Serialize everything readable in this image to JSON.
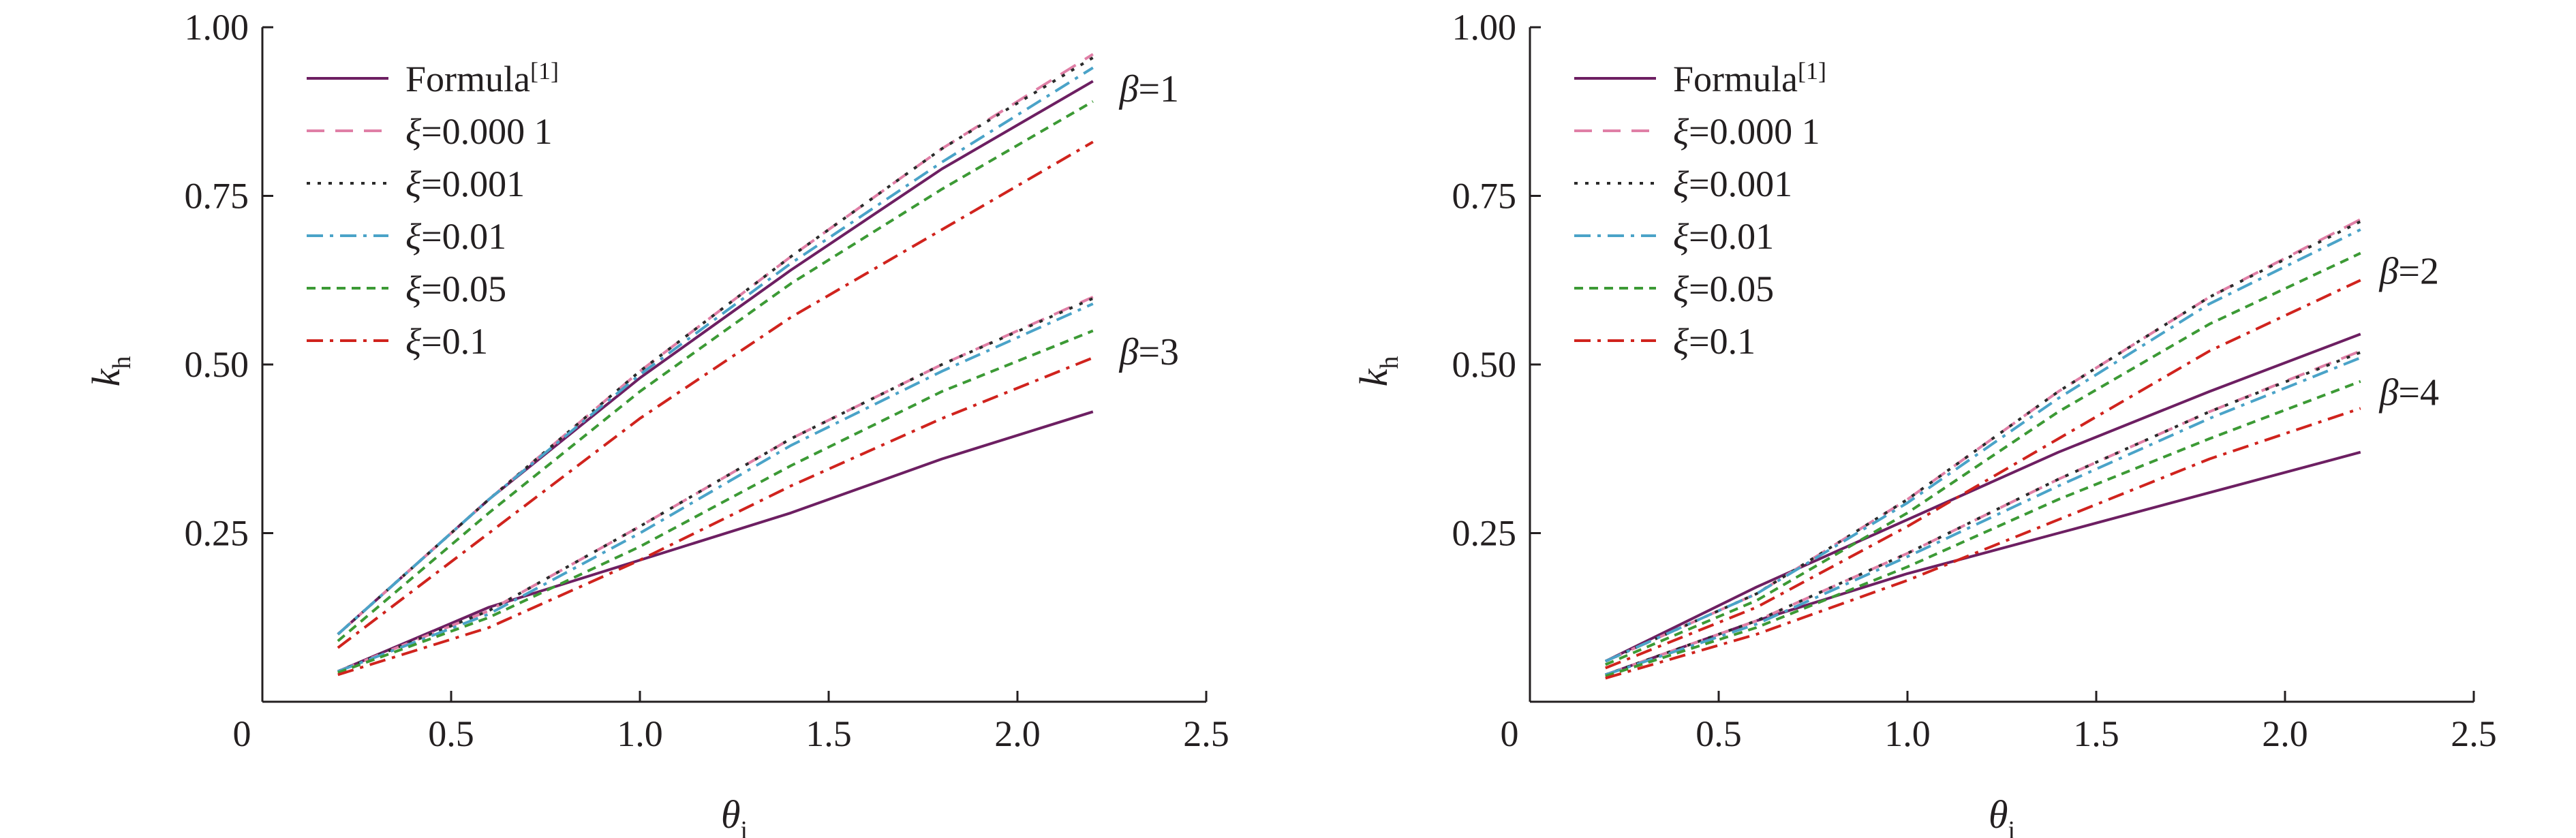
{
  "chart_data": [
    {
      "type": "line",
      "xlabel": "θ",
      "xlabel_sub": "i",
      "ylabel": "k",
      "ylabel_sub": "h",
      "xlim": [
        0,
        2.5
      ],
      "ylim": [
        0,
        1.0
      ],
      "xticks": [
        "0",
        "0.5",
        "1.0",
        "1.5",
        "2.0",
        "2.5"
      ],
      "yticks": [
        "0.25",
        "0.50",
        "0.75",
        "1.00"
      ],
      "ytick_values": [
        0.25,
        0.5,
        0.75,
        1.0
      ],
      "xtick_values": [
        0,
        0.5,
        1.0,
        1.5,
        2.0,
        2.5
      ],
      "legend_position": "top-left",
      "legend": [
        {
          "sym": "",
          "text": "Formula",
          "sup": "[1]",
          "color": "#6d1f62",
          "dash": "solid"
        },
        {
          "sym": "ξ",
          "text": "=0.000 1",
          "sup": "",
          "color": "#e07fa6",
          "dash": "dashed"
        },
        {
          "sym": "ξ",
          "text": "=0.001",
          "sup": "",
          "color": "#2b2b2b",
          "dash": "dotted"
        },
        {
          "sym": "ξ",
          "text": "=0.01",
          "sup": "",
          "color": "#4aa3c8",
          "dash": "dashdot"
        },
        {
          "sym": "ξ",
          "text": "=0.05",
          "sup": "",
          "color": "#3c9a35",
          "dash": "shortdash"
        },
        {
          "sym": "ξ",
          "text": "=0.1",
          "sup": "",
          "color": "#d0231d",
          "dash": "dashdot"
        }
      ],
      "annotations": [
        {
          "sym": "β",
          "text": "=1",
          "x": 2.27,
          "y": 0.91
        },
        {
          "sym": "β",
          "text": "=3",
          "x": 2.27,
          "y": 0.52
        }
      ],
      "series": [
        {
          "group": "β=1",
          "style": 0,
          "x": [
            0.2,
            0.6,
            1.0,
            1.4,
            1.8,
            2.2
          ],
          "y": [
            0.1,
            0.3,
            0.48,
            0.64,
            0.79,
            0.92
          ]
        },
        {
          "group": "β=1",
          "style": 1,
          "x": [
            0.2,
            0.6,
            1.0,
            1.4,
            1.8,
            2.2
          ],
          "y": [
            0.1,
            0.3,
            0.49,
            0.66,
            0.82,
            0.96
          ]
        },
        {
          "group": "β=1",
          "style": 2,
          "x": [
            0.2,
            0.6,
            1.0,
            1.4,
            1.8,
            2.2
          ],
          "y": [
            0.1,
            0.3,
            0.49,
            0.66,
            0.82,
            0.955
          ]
        },
        {
          "group": "β=1",
          "style": 3,
          "x": [
            0.2,
            0.6,
            1.0,
            1.4,
            1.8,
            2.2
          ],
          "y": [
            0.1,
            0.3,
            0.485,
            0.65,
            0.8,
            0.94
          ]
        },
        {
          "group": "β=1",
          "style": 4,
          "x": [
            0.2,
            0.6,
            1.0,
            1.4,
            1.8,
            2.2
          ],
          "y": [
            0.09,
            0.28,
            0.46,
            0.62,
            0.76,
            0.89
          ]
        },
        {
          "group": "β=1",
          "style": 5,
          "x": [
            0.2,
            0.6,
            1.0,
            1.4,
            1.8,
            2.2
          ],
          "y": [
            0.08,
            0.25,
            0.42,
            0.57,
            0.7,
            0.83
          ]
        },
        {
          "group": "β=3",
          "style": 0,
          "x": [
            0.2,
            0.6,
            1.0,
            1.4,
            1.8,
            2.2
          ],
          "y": [
            0.045,
            0.14,
            0.21,
            0.28,
            0.36,
            0.43
          ]
        },
        {
          "group": "β=3",
          "style": 1,
          "x": [
            0.2,
            0.6,
            1.0,
            1.4,
            1.8,
            2.2
          ],
          "y": [
            0.045,
            0.135,
            0.26,
            0.39,
            0.5,
            0.6
          ]
        },
        {
          "group": "β=3",
          "style": 2,
          "x": [
            0.2,
            0.6,
            1.0,
            1.4,
            1.8,
            2.2
          ],
          "y": [
            0.045,
            0.135,
            0.26,
            0.39,
            0.5,
            0.598
          ]
        },
        {
          "group": "β=3",
          "style": 3,
          "x": [
            0.2,
            0.6,
            1.0,
            1.4,
            1.8,
            2.2
          ],
          "y": [
            0.045,
            0.13,
            0.25,
            0.38,
            0.49,
            0.59
          ]
        },
        {
          "group": "β=3",
          "style": 4,
          "x": [
            0.2,
            0.6,
            1.0,
            1.4,
            1.8,
            2.2
          ],
          "y": [
            0.043,
            0.125,
            0.23,
            0.35,
            0.46,
            0.55
          ]
        },
        {
          "group": "β=3",
          "style": 5,
          "x": [
            0.2,
            0.6,
            1.0,
            1.4,
            1.8,
            2.2
          ],
          "y": [
            0.04,
            0.11,
            0.21,
            0.32,
            0.42,
            0.51
          ]
        }
      ]
    },
    {
      "type": "line",
      "xlabel": "θ",
      "xlabel_sub": "i",
      "ylabel": "k",
      "ylabel_sub": "h",
      "xlim": [
        0,
        2.5
      ],
      "ylim": [
        0,
        1.0
      ],
      "xticks": [
        "0",
        "0.5",
        "1.0",
        "1.5",
        "2.0",
        "2.5"
      ],
      "yticks": [
        "0.25",
        "0.50",
        "0.75",
        "1.00"
      ],
      "ytick_values": [
        0.25,
        0.5,
        0.75,
        1.0
      ],
      "xtick_values": [
        0,
        0.5,
        1.0,
        1.5,
        2.0,
        2.5
      ],
      "legend_position": "top-left",
      "legend": [
        {
          "sym": "",
          "text": "Formula",
          "sup": "[1]",
          "color": "#6d1f62",
          "dash": "solid"
        },
        {
          "sym": "ξ",
          "text": "=0.000 1",
          "sup": "",
          "color": "#e07fa6",
          "dash": "dashed"
        },
        {
          "sym": "ξ",
          "text": "=0.001",
          "sup": "",
          "color": "#2b2b2b",
          "dash": "dotted"
        },
        {
          "sym": "ξ",
          "text": "=0.01",
          "sup": "",
          "color": "#4aa3c8",
          "dash": "dashdot"
        },
        {
          "sym": "ξ",
          "text": "=0.05",
          "sup": "",
          "color": "#3c9a35",
          "dash": "shortdash"
        },
        {
          "sym": "ξ",
          "text": "=0.1",
          "sup": "",
          "color": "#d0231d",
          "dash": "dashdot"
        }
      ],
      "annotations": [
        {
          "sym": "β",
          "text": "=2",
          "x": 2.25,
          "y": 0.64
        },
        {
          "sym": "β",
          "text": "=4",
          "x": 2.25,
          "y": 0.46
        }
      ],
      "series": [
        {
          "group": "β=2",
          "style": 0,
          "x": [
            0.2,
            0.6,
            1.0,
            1.4,
            1.8,
            2.2
          ],
          "y": [
            0.06,
            0.17,
            0.27,
            0.37,
            0.46,
            0.545
          ]
        },
        {
          "group": "β=2",
          "style": 1,
          "x": [
            0.2,
            0.6,
            1.0,
            1.4,
            1.8,
            2.2
          ],
          "y": [
            0.06,
            0.16,
            0.3,
            0.46,
            0.6,
            0.715
          ]
        },
        {
          "group": "β=2",
          "style": 2,
          "x": [
            0.2,
            0.6,
            1.0,
            1.4,
            1.8,
            2.2
          ],
          "y": [
            0.06,
            0.16,
            0.3,
            0.46,
            0.6,
            0.712
          ]
        },
        {
          "group": "β=2",
          "style": 3,
          "x": [
            0.2,
            0.6,
            1.0,
            1.4,
            1.8,
            2.2
          ],
          "y": [
            0.06,
            0.16,
            0.295,
            0.45,
            0.59,
            0.7
          ]
        },
        {
          "group": "β=2",
          "style": 4,
          "x": [
            0.2,
            0.6,
            1.0,
            1.4,
            1.8,
            2.2
          ],
          "y": [
            0.055,
            0.15,
            0.28,
            0.43,
            0.56,
            0.665
          ]
        },
        {
          "group": "β=2",
          "style": 5,
          "x": [
            0.2,
            0.6,
            1.0,
            1.4,
            1.8,
            2.2
          ],
          "y": [
            0.05,
            0.14,
            0.26,
            0.39,
            0.52,
            0.625
          ]
        },
        {
          "group": "β=4",
          "style": 0,
          "x": [
            0.2,
            0.6,
            1.0,
            1.4,
            1.8,
            2.2
          ],
          "y": [
            0.04,
            0.12,
            0.19,
            0.25,
            0.31,
            0.37
          ]
        },
        {
          "group": "β=4",
          "style": 1,
          "x": [
            0.2,
            0.6,
            1.0,
            1.4,
            1.8,
            2.2
          ],
          "y": [
            0.04,
            0.12,
            0.22,
            0.33,
            0.43,
            0.52
          ]
        },
        {
          "group": "β=4",
          "style": 2,
          "x": [
            0.2,
            0.6,
            1.0,
            1.4,
            1.8,
            2.2
          ],
          "y": [
            0.04,
            0.12,
            0.22,
            0.33,
            0.43,
            0.518
          ]
        },
        {
          "group": "β=4",
          "style": 3,
          "x": [
            0.2,
            0.6,
            1.0,
            1.4,
            1.8,
            2.2
          ],
          "y": [
            0.04,
            0.115,
            0.215,
            0.32,
            0.42,
            0.51
          ]
        },
        {
          "group": "β=4",
          "style": 4,
          "x": [
            0.2,
            0.6,
            1.0,
            1.4,
            1.8,
            2.2
          ],
          "y": [
            0.038,
            0.11,
            0.2,
            0.3,
            0.39,
            0.475
          ]
        },
        {
          "group": "β=4",
          "style": 5,
          "x": [
            0.2,
            0.6,
            1.0,
            1.4,
            1.8,
            2.2
          ],
          "y": [
            0.035,
            0.1,
            0.18,
            0.27,
            0.36,
            0.435
          ]
        }
      ]
    }
  ]
}
